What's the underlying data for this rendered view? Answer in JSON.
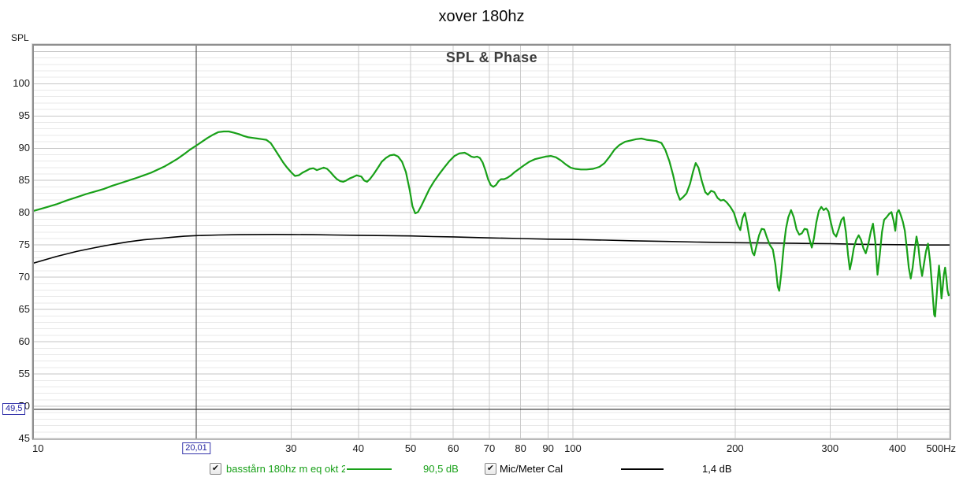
{
  "title": "xover 180hz",
  "subtitle": "SPL & Phase",
  "y_axis_title": "SPL",
  "icons": {
    "check": "✔"
  },
  "colors": {
    "green_trace": "#18A018",
    "black_trace": "#000000",
    "grid_minor": "#E9E9E9",
    "grid_major": "#C6C6C6",
    "grid_vert": "#CBCBCB",
    "cursor_line": "#3A3A3A",
    "marker_line": "#1A1A1A",
    "marker_box_border": "#3434AB",
    "marker_text": "#2222A0",
    "subtitle_text": "#3D3D3D"
  },
  "legend": {
    "items": [
      {
        "checked": true,
        "label": "basstårn 180hz m eq okt 20",
        "value": "90,5 dB",
        "color": "#18A018",
        "swatch": "line"
      },
      {
        "checked": true,
        "label": "Mic/Meter Cal",
        "value": "1,4 dB",
        "color": "#000000",
        "swatch": "line"
      }
    ]
  },
  "chart_data": {
    "type": "line",
    "x_scale": "log",
    "x_unit": "Hz",
    "x_range": [
      10,
      500
    ],
    "y_range": [
      45,
      105.9
    ],
    "y_ticks": [
      45,
      50,
      55,
      60,
      65,
      70,
      75,
      80,
      85,
      90,
      95,
      100
    ],
    "y_minor_step": 1,
    "x_gridlines": [
      20,
      30,
      40,
      50,
      60,
      70,
      80,
      90,
      100,
      200,
      300,
      400,
      500
    ],
    "x_ticks": [
      {
        "f": 10,
        "label": "10",
        "align": "left"
      },
      {
        "f": 30,
        "label": "30"
      },
      {
        "f": 40,
        "label": "40"
      },
      {
        "f": 50,
        "label": "50"
      },
      {
        "f": 60,
        "label": "60"
      },
      {
        "f": 70,
        "label": "70"
      },
      {
        "f": 80,
        "label": "80"
      },
      {
        "f": 90,
        "label": "90"
      },
      {
        "f": 100,
        "label": "100"
      },
      {
        "f": 200,
        "label": "200"
      },
      {
        "f": 300,
        "label": "300"
      },
      {
        "f": 400,
        "label": "400"
      },
      {
        "f": 500,
        "label": "500Hz",
        "align": "right"
      }
    ],
    "cursor": {
      "x_hz": 20.01,
      "x_label": "20,01",
      "y_db": 49.5,
      "y_label": "49,5"
    },
    "series": [
      {
        "name": "basstårn 180hz m eq okt 20",
        "color": "#18A018",
        "width": 2.2,
        "value_at_cursor": "90,5 dB",
        "points": [
          [
            10,
            80.3
          ],
          [
            10.5,
            80.8
          ],
          [
            11,
            81.3
          ],
          [
            11.5,
            81.9
          ],
          [
            12,
            82.4
          ],
          [
            12.5,
            82.9
          ],
          [
            13,
            83.3
          ],
          [
            13.5,
            83.7
          ],
          [
            14,
            84.2
          ],
          [
            14.5,
            84.6
          ],
          [
            15,
            85
          ],
          [
            15.5,
            85.4
          ],
          [
            16,
            85.8
          ],
          [
            16.5,
            86.2
          ],
          [
            17,
            86.7
          ],
          [
            17.5,
            87.2
          ],
          [
            18,
            87.8
          ],
          [
            18.5,
            88.4
          ],
          [
            19,
            89.1
          ],
          [
            19.5,
            89.8
          ],
          [
            20,
            90.4
          ],
          [
            20.5,
            91
          ],
          [
            21,
            91.6
          ],
          [
            21.5,
            92.1
          ],
          [
            22,
            92.5
          ],
          [
            22.5,
            92.6
          ],
          [
            23,
            92.6
          ],
          [
            23.5,
            92.4
          ],
          [
            24,
            92.2
          ],
          [
            24.5,
            91.9
          ],
          [
            25,
            91.7
          ],
          [
            25.5,
            91.6
          ],
          [
            26,
            91.5
          ],
          [
            26.5,
            91.4
          ],
          [
            27,
            91.3
          ],
          [
            27.5,
            90.8
          ],
          [
            28,
            89.8
          ],
          [
            28.5,
            88.8
          ],
          [
            29,
            87.8
          ],
          [
            29.5,
            87
          ],
          [
            30,
            86.3
          ],
          [
            30.5,
            85.7
          ],
          [
            31,
            85.8
          ],
          [
            31.5,
            86.2
          ],
          [
            32,
            86.5
          ],
          [
            32.5,
            86.8
          ],
          [
            33,
            86.9
          ],
          [
            33.5,
            86.6
          ],
          [
            34,
            86.8
          ],
          [
            34.5,
            87
          ],
          [
            35,
            86.8
          ],
          [
            35.5,
            86.3
          ],
          [
            36,
            85.7
          ],
          [
            36.5,
            85.2
          ],
          [
            37,
            84.9
          ],
          [
            37.5,
            84.8
          ],
          [
            38,
            85
          ],
          [
            38.5,
            85.3
          ],
          [
            39,
            85.5
          ],
          [
            39.7,
            85.8
          ],
          [
            40.5,
            85.6
          ],
          [
            41,
            85
          ],
          [
            41.5,
            84.8
          ],
          [
            42,
            85.2
          ],
          [
            42.7,
            86
          ],
          [
            43.5,
            87
          ],
          [
            44.2,
            87.9
          ],
          [
            45,
            88.5
          ],
          [
            45.8,
            88.9
          ],
          [
            46.6,
            89
          ],
          [
            47.4,
            88.7
          ],
          [
            48.2,
            87.9
          ],
          [
            49,
            86.3
          ],
          [
            49.8,
            83.5
          ],
          [
            50.4,
            81
          ],
          [
            51,
            79.9
          ],
          [
            51.6,
            80.1
          ],
          [
            52.3,
            81
          ],
          [
            53.2,
            82.3
          ],
          [
            54.2,
            83.7
          ],
          [
            55.3,
            84.9
          ],
          [
            56.5,
            86
          ],
          [
            57.7,
            87
          ],
          [
            59,
            88
          ],
          [
            60.3,
            88.8
          ],
          [
            61.6,
            89.2
          ],
          [
            63,
            89.3
          ],
          [
            64,
            89
          ],
          [
            64.8,
            88.7
          ],
          [
            65.6,
            88.6
          ],
          [
            66.4,
            88.7
          ],
          [
            67.2,
            88.5
          ],
          [
            68,
            87.8
          ],
          [
            68.8,
            86.6
          ],
          [
            69.6,
            85.2
          ],
          [
            70.4,
            84.3
          ],
          [
            71.2,
            84
          ],
          [
            72,
            84.3
          ],
          [
            72.8,
            84.9
          ],
          [
            73.6,
            85.2
          ],
          [
            74.5,
            85.2
          ],
          [
            75.5,
            85.4
          ],
          [
            76.8,
            85.8
          ],
          [
            78,
            86.3
          ],
          [
            79.5,
            86.8
          ],
          [
            81,
            87.3
          ],
          [
            83,
            87.9
          ],
          [
            85,
            88.3
          ],
          [
            87,
            88.5
          ],
          [
            89,
            88.7
          ],
          [
            91,
            88.8
          ],
          [
            93,
            88.6
          ],
          [
            95,
            88.1
          ],
          [
            97,
            87.5
          ],
          [
            99,
            87
          ],
          [
            101,
            86.8
          ],
          [
            103.5,
            86.7
          ],
          [
            106,
            86.7
          ],
          [
            109,
            86.8
          ],
          [
            112,
            87.1
          ],
          [
            114.5,
            87.7
          ],
          [
            117,
            88.7
          ],
          [
            119.5,
            89.8
          ],
          [
            122,
            90.5
          ],
          [
            125,
            91
          ],
          [
            128,
            91.2
          ],
          [
            131,
            91.4
          ],
          [
            134,
            91.5
          ],
          [
            137,
            91.3
          ],
          [
            140,
            91.2
          ],
          [
            143,
            91.1
          ],
          [
            146,
            90.8
          ],
          [
            148.5,
            89.7
          ],
          [
            151,
            88
          ],
          [
            153.5,
            85.8
          ],
          [
            156,
            83.2
          ],
          [
            158,
            82
          ],
          [
            160,
            82.4
          ],
          [
            162.5,
            83
          ],
          [
            165,
            84.5
          ],
          [
            167,
            86.3
          ],
          [
            169,
            87.7
          ],
          [
            171,
            87
          ],
          [
            173.5,
            84.9
          ],
          [
            176,
            83.2
          ],
          [
            178,
            82.8
          ],
          [
            180.5,
            83.4
          ],
          [
            183,
            83.2
          ],
          [
            185.5,
            82.3
          ],
          [
            188,
            81.9
          ],
          [
            190.5,
            82
          ],
          [
            193,
            81.6
          ],
          [
            196,
            80.9
          ],
          [
            199,
            80
          ],
          [
            202,
            78.2
          ],
          [
            204.5,
            77.3
          ],
          [
            206.5,
            79.2
          ],
          [
            208.5,
            80
          ],
          [
            210.5,
            78.3
          ],
          [
            213,
            75.8
          ],
          [
            215.5,
            73.8
          ],
          [
            217,
            73.4
          ],
          [
            219,
            74.8
          ],
          [
            221.5,
            76.5
          ],
          [
            224,
            77.5
          ],
          [
            226.5,
            77.4
          ],
          [
            229,
            76.2
          ],
          [
            232,
            75
          ],
          [
            235,
            74.3
          ],
          [
            237.5,
            72
          ],
          [
            240,
            68.5
          ],
          [
            241.5,
            67.9
          ],
          [
            243.5,
            70.5
          ],
          [
            246,
            74.5
          ],
          [
            248.5,
            77.5
          ],
          [
            251,
            79.3
          ],
          [
            254,
            80.4
          ],
          [
            257,
            79.3
          ],
          [
            260,
            77.4
          ],
          [
            263,
            76.6
          ],
          [
            266,
            76.8
          ],
          [
            269,
            77.5
          ],
          [
            272,
            77.4
          ],
          [
            275,
            75.8
          ],
          [
            277.5,
            74.6
          ],
          [
            280,
            76
          ],
          [
            283,
            78.5
          ],
          [
            286,
            80.3
          ],
          [
            289,
            80.9
          ],
          [
            292,
            80.4
          ],
          [
            295,
            80.7
          ],
          [
            298,
            80.2
          ],
          [
            301,
            78.5
          ],
          [
            304.5,
            76.8
          ],
          [
            308,
            76.3
          ],
          [
            311.5,
            77.5
          ],
          [
            315,
            78.9
          ],
          [
            318,
            79.3
          ],
          [
            321,
            77
          ],
          [
            324,
            73.5
          ],
          [
            326.5,
            71.2
          ],
          [
            329,
            72.5
          ],
          [
            332,
            74.5
          ],
          [
            335.5,
            75.8
          ],
          [
            339,
            76.5
          ],
          [
            342.5,
            75.8
          ],
          [
            346,
            74.5
          ],
          [
            349.5,
            73.7
          ],
          [
            353,
            75
          ],
          [
            357,
            77
          ],
          [
            360.5,
            78.3
          ],
          [
            364,
            75.5
          ],
          [
            367.5,
            70.4
          ],
          [
            371,
            73.5
          ],
          [
            374.5,
            77
          ],
          [
            378,
            78.9
          ],
          [
            382,
            79.3
          ],
          [
            386,
            79.8
          ],
          [
            390,
            80.1
          ],
          [
            393.5,
            78.8
          ],
          [
            396.5,
            77.2
          ],
          [
            399.5,
            80
          ],
          [
            402.5,
            80.4
          ],
          [
            406,
            79.6
          ],
          [
            409.5,
            78.6
          ],
          [
            413,
            77.2
          ],
          [
            416.5,
            74.5
          ],
          [
            420,
            71.5
          ],
          [
            423.5,
            69.8
          ],
          [
            427,
            71.5
          ],
          [
            430.5,
            74
          ],
          [
            434,
            76.3
          ],
          [
            437.5,
            74.8
          ],
          [
            441,
            72
          ],
          [
            444.5,
            70.2
          ],
          [
            448,
            72
          ],
          [
            452,
            74
          ],
          [
            456,
            75.2
          ],
          [
            460,
            72.5
          ],
          [
            464,
            68.5
          ],
          [
            468,
            64.2
          ],
          [
            470,
            63.9
          ],
          [
            472.5,
            66.5
          ],
          [
            475.5,
            69.8
          ],
          [
            478,
            71.8
          ],
          [
            480.5,
            69.5
          ],
          [
            483,
            66.7
          ],
          [
            485.5,
            68.5
          ],
          [
            488,
            70.5
          ],
          [
            490.5,
            71.5
          ],
          [
            493,
            70
          ],
          [
            495.5,
            68
          ],
          [
            498,
            67.2
          ],
          [
            500,
            67.3
          ]
        ]
      },
      {
        "name": "Mic/Meter Cal",
        "color": "#000000",
        "width": 1.6,
        "value_at_cursor": "1,4 dB",
        "points": [
          [
            10,
            72.2
          ],
          [
            11,
            73.2
          ],
          [
            12,
            74
          ],
          [
            13,
            74.6
          ],
          [
            14,
            75.1
          ],
          [
            15,
            75.5
          ],
          [
            16,
            75.8
          ],
          [
            17,
            76
          ],
          [
            18,
            76.2
          ],
          [
            19,
            76.35
          ],
          [
            20,
            76.45
          ],
          [
            22,
            76.55
          ],
          [
            24,
            76.6
          ],
          [
            26,
            76.62
          ],
          [
            28,
            76.63
          ],
          [
            30,
            76.62
          ],
          [
            33,
            76.6
          ],
          [
            36,
            76.55
          ],
          [
            40,
            76.5
          ],
          [
            45,
            76.45
          ],
          [
            50,
            76.4
          ],
          [
            55,
            76.3
          ],
          [
            60,
            76.25
          ],
          [
            70,
            76.1
          ],
          [
            80,
            76
          ],
          [
            90,
            75.9
          ],
          [
            100,
            75.85
          ],
          [
            115,
            75.75
          ],
          [
            130,
            75.65
          ],
          [
            150,
            75.55
          ],
          [
            170,
            75.45
          ],
          [
            200,
            75.35
          ],
          [
            230,
            75.3
          ],
          [
            260,
            75.25
          ],
          [
            300,
            75.2
          ],
          [
            350,
            75.1
          ],
          [
            400,
            75.05
          ],
          [
            450,
            75
          ],
          [
            500,
            75
          ]
        ]
      }
    ]
  }
}
